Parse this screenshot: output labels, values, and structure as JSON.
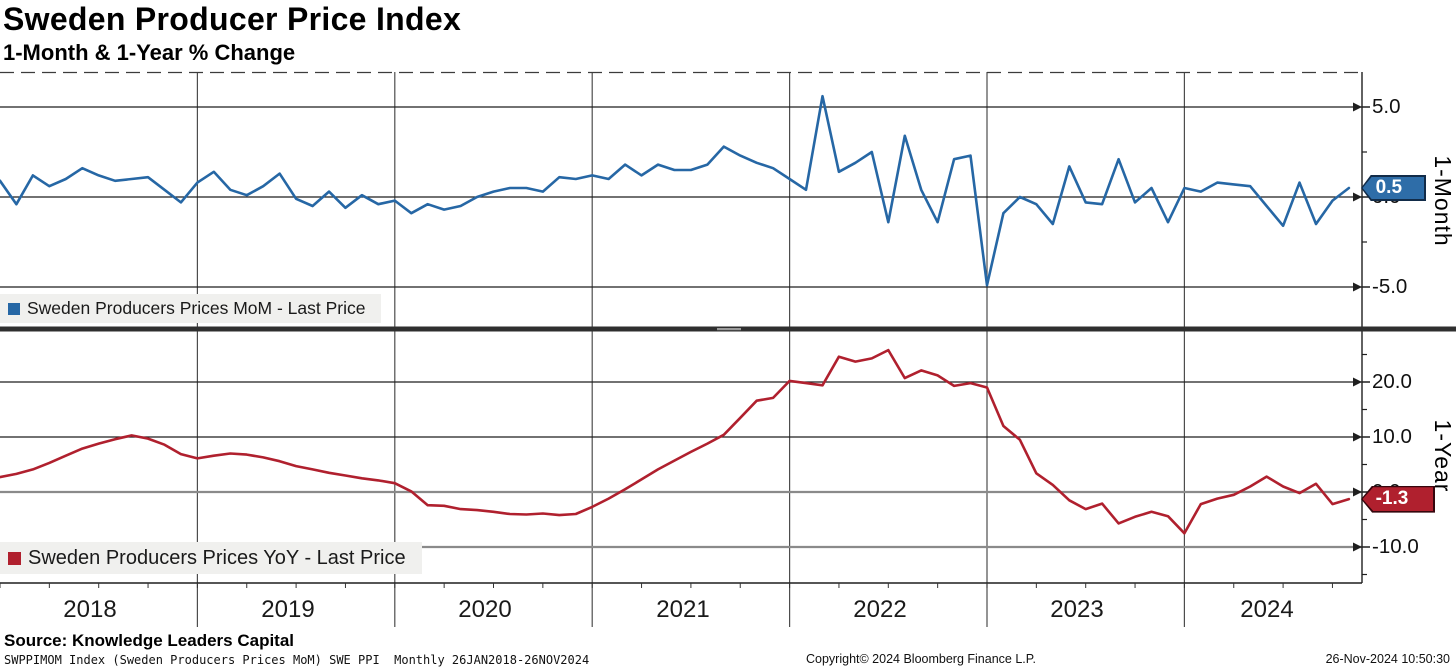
{
  "title": "Sweden Producer Price Index",
  "subtitle": "1-Month & 1-Year % Change",
  "x_years": [
    "2018",
    "2019",
    "2020",
    "2021",
    "2022",
    "2023",
    "2024"
  ],
  "footer": {
    "source": "Source: Knowledge Leaders Capital",
    "ticker_line": "SWPPIMOM Index (Sweden Producers Prices MoM) SWE PPI  Monthly 26JAN2018-26NOV2024",
    "copyright": "Copyright© 2024 Bloomberg Finance L.P.",
    "timestamp": "26-Nov-2024 10:50:30"
  },
  "colors": {
    "mom_line": "#2667a5",
    "yoy_line": "#b0202e",
    "grid_dark": "#1f1f1f",
    "grid_soft": "#8a8a8a",
    "year_grid": "#4d4d4d",
    "divider": "#2f2f2f",
    "legend_bg": "#f0f0ee"
  },
  "chart_data": [
    {
      "type": "line",
      "title": "Sweden Producers Prices MoM - Last Price",
      "x_start": "2018-01",
      "x_end": "2024-11",
      "freq": "monthly",
      "color": "#2667a5",
      "ylim": [
        -7.2,
        6.9
      ],
      "last_value": 0.5,
      "last_label": "0.5",
      "axis": {
        "title": "1-Month",
        "ticks": [
          {
            "v": 5,
            "label": "5.0",
            "soft": false
          },
          {
            "v": 0,
            "label": "0.0",
            "soft": false
          },
          {
            "v": -5,
            "label": "-5.0",
            "soft": false
          }
        ],
        "minor": [
          2.5,
          -2.5
        ]
      },
      "values": [
        0.9,
        -0.4,
        1.2,
        0.6,
        1.0,
        1.6,
        1.2,
        0.9,
        1.0,
        1.1,
        0.4,
        -0.3,
        0.8,
        1.4,
        0.4,
        0.1,
        0.6,
        1.3,
        -0.1,
        -0.5,
        0.3,
        -0.6,
        0.1,
        -0.4,
        -0.2,
        -0.9,
        -0.4,
        -0.7,
        -0.5,
        0.0,
        0.3,
        0.5,
        0.5,
        0.3,
        1.1,
        1.0,
        1.2,
        1.0,
        1.8,
        1.2,
        1.8,
        1.5,
        1.5,
        1.8,
        2.8,
        2.3,
        1.9,
        1.6,
        1.0,
        0.4,
        5.6,
        1.4,
        1.9,
        2.5,
        -1.4,
        3.4,
        0.4,
        -1.4,
        2.1,
        2.3,
        -4.9,
        -0.9,
        0.0,
        -0.4,
        -1.5,
        1.7,
        -0.3,
        -0.4,
        2.1,
        -0.3,
        0.5,
        -1.4,
        0.5,
        0.3,
        0.8,
        0.7,
        0.6,
        -0.5,
        -1.6,
        0.8,
        -1.5,
        -0.2,
        0.5
      ]
    },
    {
      "type": "line",
      "title": "Sweden Producers Prices YoY - Last Price",
      "x_start": "2018-01",
      "x_end": "2024-11",
      "freq": "monthly",
      "color": "#b0202e",
      "ylim": [
        -16.5,
        29.1
      ],
      "last_value": -1.3,
      "last_label": "-1.3",
      "axis": {
        "title": "1-Year",
        "ticks": [
          {
            "v": 20,
            "label": "20.0",
            "soft": false
          },
          {
            "v": 10,
            "label": "10.0",
            "soft": false
          },
          {
            "v": 0,
            "label": "0.0",
            "soft": true
          },
          {
            "v": -10,
            "label": "-10.0",
            "soft": true
          }
        ],
        "minor": [
          25,
          15,
          5,
          -5,
          -15
        ]
      },
      "values": [
        2.7,
        3.3,
        4.1,
        5.3,
        6.6,
        7.9,
        8.8,
        9.6,
        10.3,
        9.7,
        8.6,
        6.9,
        6.1,
        6.6,
        7.0,
        6.8,
        6.3,
        5.6,
        4.7,
        4.1,
        3.5,
        3.0,
        2.5,
        2.1,
        1.6,
        0.1,
        -2.4,
        -2.5,
        -3.1,
        -3.3,
        -3.6,
        -4.0,
        -4.1,
        -3.9,
        -4.2,
        -4.0,
        -2.7,
        -1.2,
        0.5,
        2.3,
        4.1,
        5.7,
        7.3,
        8.8,
        10.4,
        13.5,
        16.6,
        17.1,
        20.2,
        19.8,
        19.4,
        24.6,
        23.7,
        24.3,
        25.8,
        20.7,
        22.1,
        21.2,
        19.3,
        19.8,
        19.0,
        12.0,
        9.5,
        3.4,
        1.3,
        -1.5,
        -3.1,
        -2.1,
        -5.7,
        -4.5,
        -3.6,
        -4.4,
        -7.5,
        -2.2,
        -1.2,
        -0.5,
        1.0,
        2.8,
        1.0,
        -0.2,
        1.5,
        -2.2,
        -1.3
      ]
    }
  ]
}
